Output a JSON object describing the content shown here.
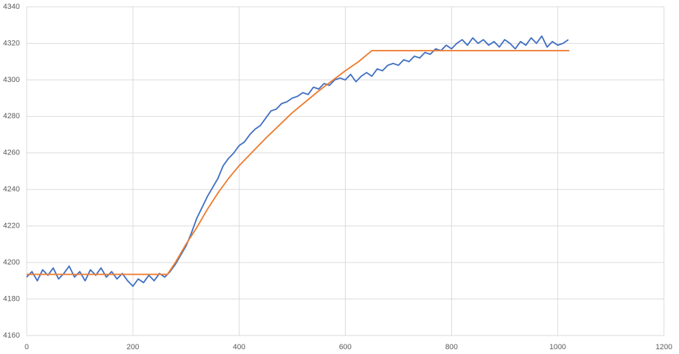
{
  "chart_data": {
    "type": "line",
    "xlim": [
      0,
      1200
    ],
    "xticks": [
      0,
      200,
      400,
      600,
      800,
      1000,
      1200
    ],
    "ylim": [
      4160,
      4340
    ],
    "yticks": [
      4160,
      4180,
      4200,
      4220,
      4240,
      4260,
      4280,
      4300,
      4320,
      4340
    ],
    "grid": true,
    "series": [
      {
        "color": "#4472c4",
        "x": [
          0,
          10,
          20,
          30,
          40,
          50,
          60,
          70,
          80,
          90,
          100,
          110,
          120,
          130,
          140,
          150,
          160,
          170,
          180,
          190,
          200,
          210,
          220,
          230,
          240,
          250,
          260,
          270,
          280,
          290,
          300,
          310,
          320,
          330,
          340,
          350,
          360,
          370,
          380,
          390,
          400,
          410,
          420,
          430,
          440,
          450,
          460,
          470,
          480,
          490,
          500,
          510,
          520,
          530,
          540,
          550,
          560,
          570,
          580,
          590,
          600,
          610,
          620,
          630,
          640,
          650,
          660,
          670,
          680,
          690,
          700,
          710,
          720,
          730,
          740,
          750,
          760,
          770,
          780,
          790,
          800,
          810,
          820,
          830,
          840,
          850,
          860,
          870,
          880,
          890,
          900,
          910,
          920,
          930,
          940,
          950,
          960,
          970,
          980,
          990,
          1000,
          1010,
          1020
        ],
        "values": [
          4192,
          4195,
          4190,
          4196,
          4193,
          4197,
          4191,
          4194,
          4198,
          4192,
          4195,
          4190,
          4196,
          4193,
          4197,
          4192,
          4195,
          4191,
          4194,
          4190,
          4187,
          4191,
          4189,
          4193,
          4190,
          4194,
          4192,
          4195,
          4199,
          4204,
          4209,
          4216,
          4224,
          4230,
          4236,
          4241,
          4246,
          4253,
          4257,
          4260,
          4264,
          4266,
          4270,
          4273,
          4275,
          4279,
          4283,
          4284,
          4287,
          4288,
          4290,
          4291,
          4293,
          4292,
          4296,
          4295,
          4298,
          4297,
          4300,
          4301,
          4300,
          4303,
          4299,
          4302,
          4304,
          4302,
          4306,
          4305,
          4308,
          4309,
          4308,
          4311,
          4310,
          4313,
          4312,
          4315,
          4314,
          4317,
          4316,
          4319,
          4317,
          4320,
          4322,
          4319,
          4323,
          4320,
          4322,
          4319,
          4321,
          4318,
          4322,
          4320,
          4317,
          4321,
          4319,
          4323,
          4320,
          4324,
          4318,
          4321,
          4319,
          4320,
          4322
        ]
      },
      {
        "color": "#ed7d31",
        "x": [
          0,
          265,
          280,
          300,
          320,
          340,
          360,
          380,
          400,
          450,
          500,
          550,
          600,
          625,
          650,
          1022
        ],
        "values": [
          4193.5,
          4193.5,
          4200,
          4210,
          4219,
          4229,
          4238,
          4246,
          4253,
          4268,
          4282,
          4294,
          4305,
          4310,
          4316,
          4316
        ]
      }
    ]
  }
}
